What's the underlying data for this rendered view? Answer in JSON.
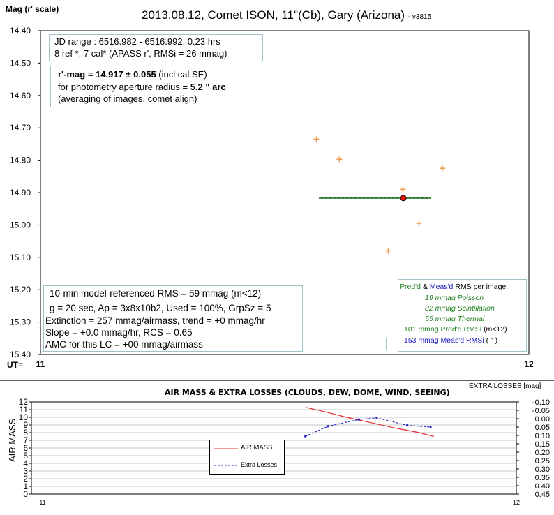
{
  "top_chart": {
    "y_axis_title": "Mag (r' scale)",
    "title_main": "2013.08.12, Comet ISON, 11\"(Cb), Gary (Arizona)",
    "title_version": "- v3815",
    "x_axis_prefix": "UT=",
    "info_box": {
      "line1": "JD range : 6516.982 - 6516.992, 0.23 hrs",
      "line2": "8  ref *, 7 cal* (APASS r', RMSi = 26 mmag)"
    },
    "result_box": {
      "line1_bold": "r'-mag = 14.917 ± 0.055",
      "line1_rest": " (incl cal SE)",
      "line2_text": "for photometry aperture radius =  ",
      "line2_bold": "5.2 \" arc",
      "line3": "(averaging of images, comet align)"
    },
    "stats_box": {
      "line1": "10-min model-referenced RMS = 59 mmag (m<12)",
      "line2": "g = 20 sec, Ap = 3x8x10b2, Used = 100%, GrpSz = 5",
      "line3": "Extinction = 257 mmag/airmass, trend = +0 mmag/hr",
      "line4": "Slope = +0.0 mmag/hr, RCS = 0.65",
      "line5": "AMC for this LC = +00 mmag/airmass"
    },
    "rms_box": {
      "header_pred": "Pred'd",
      "header_amp": " & ",
      "header_meas": "Meas'd",
      "header_rest": " RMS per image:",
      "poisson": "19 mmag Poisson",
      "scintillation": "82 mmag Scintillation",
      "thermal": "55 mmag Thermal",
      "pred_value": "101 mmag  Pred'd  RMSi",
      "pred_note": "(m<12)",
      "meas_value": "153 mmag  Meas'd  RMSi",
      "meas_note": "(    \"     )"
    }
  },
  "bottom_chart": {
    "title": "AIR MASS & EXTRA  LOSSES (CLOUDS,  DEW, DOME, WIND, SEEING)",
    "right_axis_title": "EXTRA  LOSSES [mag]",
    "left_axis_title": "AIR MASS",
    "legend_air_mass": "AIR MASS",
    "legend_extra_losses": "Extra Losses"
  },
  "colors": {
    "marker": "#f0a050",
    "mean_dot": "#e01010",
    "mean_line": "#207020",
    "air_mass": "#e03030",
    "extra_losses": "#2020c0",
    "green_text": "#208020",
    "blue_text": "#2020c0",
    "box_border": "#9ec4c8"
  },
  "chart_data": [
    {
      "type": "scatter",
      "ylabel": "Mag (r' scale)",
      "ylim": [
        14.4,
        15.4
      ],
      "y_inverted": true,
      "xlim": [
        11,
        12
      ],
      "y_ticks": [
        "14.40",
        "14.50",
        "14.60",
        "14.70",
        "14.80",
        "14.90",
        "15.00",
        "15.10",
        "15.20",
        "15.30",
        "15.40"
      ],
      "x_ticks": [
        "11",
        "12"
      ],
      "grid": false,
      "series": [
        {
          "marker": "plus",
          "x": [
            11.565,
            11.612,
            11.712,
            11.742,
            11.775,
            11.823
          ],
          "y": [
            14.735,
            14.797,
            15.08,
            14.89,
            14.995,
            14.825
          ]
        },
        {
          "marker": "dot",
          "x": [
            11.743
          ],
          "y": [
            14.917
          ]
        }
      ],
      "mean_line": {
        "x": [
          11.57,
          11.8
        ],
        "y": 14.917
      }
    },
    {
      "type": "line",
      "xlim": [
        11,
        12
      ],
      "x_ticks": [
        "11",
        "12"
      ],
      "left_ylabel": "AIR MASS",
      "left_ylim": [
        0,
        12
      ],
      "left_ticks": [
        "0",
        "1",
        "2",
        "3",
        "4",
        "5",
        "6",
        "7",
        "8",
        "9",
        "10",
        "11",
        "12"
      ],
      "right_ylabel": "EXTRA  LOSSES [mag]",
      "right_ylim": [
        -0.1,
        0.45
      ],
      "right_inverted": true,
      "right_ticks": [
        "-0.10",
        "-0.05",
        "0.00",
        "0.05",
        "0.10",
        "0.15",
        "0.20",
        "0.25",
        "0.30",
        "0.35",
        "0.40",
        "0.45"
      ],
      "grid": true,
      "series": [
        {
          "name": "AIR MASS",
          "axis": "left",
          "x": [
            11.565,
            11.6,
            11.65,
            11.7,
            11.75,
            11.8,
            11.83
          ],
          "y": [
            11.3,
            10.8,
            10.0,
            9.3,
            8.6,
            8.0,
            7.5
          ]
        },
        {
          "name": "Extra Losses",
          "axis": "right",
          "x": [
            11.565,
            11.612,
            11.675,
            11.712,
            11.775,
            11.823
          ],
          "y": [
            0.105,
            0.045,
            0.005,
            -0.005,
            0.04,
            0.05
          ]
        }
      ]
    }
  ]
}
